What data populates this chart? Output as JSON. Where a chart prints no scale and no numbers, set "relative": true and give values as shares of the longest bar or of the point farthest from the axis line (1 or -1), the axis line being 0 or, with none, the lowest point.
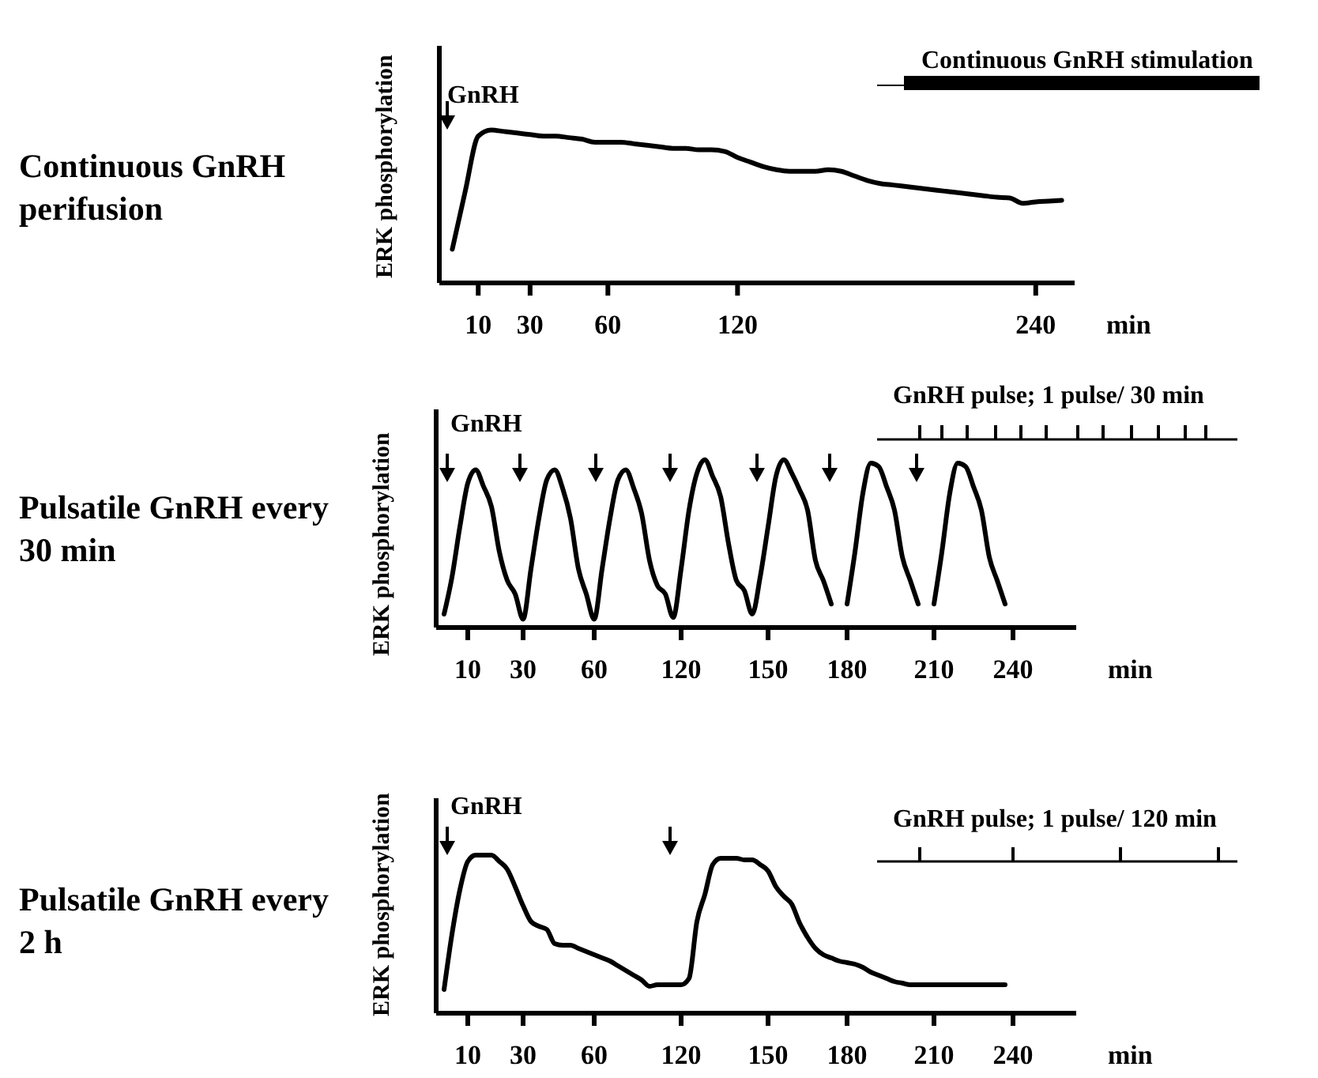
{
  "chart_data": [
    {
      "type": "line",
      "title": "Continuous GnRH perifusion",
      "xlabel": "min",
      "ylabel": "ERK phosphorylation",
      "relative": true,
      "color": "#000000",
      "categories": [
        null,
        null,
        null,
        "10",
        null,
        null,
        null,
        "30",
        null,
        null,
        null,
        null,
        null,
        "60",
        null,
        null,
        null,
        null,
        null,
        null,
        null,
        null,
        null,
        "120",
        null,
        null,
        null,
        null,
        null,
        null,
        null,
        null,
        null,
        null,
        null,
        null,
        null,
        null,
        null,
        null,
        null,
        null,
        null,
        null,
        null,
        null,
        "240",
        null,
        null,
        null
      ],
      "values": [
        null,
        0.22,
        0.6,
        0.96,
        1.0,
        0.99,
        0.98,
        0.97,
        0.96,
        0.96,
        0.95,
        0.94,
        0.92,
        0.92,
        0.92,
        0.91,
        0.9,
        0.89,
        0.88,
        0.88,
        0.87,
        0.87,
        0.86,
        0.82,
        0.79,
        0.76,
        0.74,
        0.73,
        0.73,
        0.73,
        0.74,
        0.73,
        0.7,
        0.67,
        0.65,
        0.64,
        0.63,
        0.62,
        0.61,
        0.6,
        0.59,
        0.58,
        0.57,
        0.56,
        0.555,
        0.52,
        0.53,
        0.535,
        0.54,
        null
      ],
      "annotations": [
        "GnRH",
        "Continuous GnRH stimulation"
      ]
    },
    {
      "type": "line",
      "title": "Pulsatile GnRH every 30 min",
      "xlabel": "min",
      "ylabel": "ERK phosphorylation",
      "relative": true,
      "color": "#000000",
      "categories": [
        null,
        null,
        null,
        null,
        "10",
        null,
        null,
        null,
        null,
        null,
        null,
        "30",
        null,
        null,
        null,
        null,
        null,
        null,
        null,
        null,
        "60",
        null,
        null,
        null,
        null,
        null,
        null,
        null,
        null,
        null,
        null,
        "120",
        null,
        null,
        null,
        null,
        null,
        null,
        null,
        null,
        null,
        null,
        "150",
        null,
        null,
        null,
        null,
        null,
        null,
        null,
        null,
        null,
        "180",
        null,
        null,
        null,
        null,
        null,
        null,
        null,
        null,
        null,
        null,
        "210",
        null,
        null,
        null,
        null,
        null,
        null,
        null,
        null,
        null,
        "240",
        null,
        null,
        null,
        null,
        null,
        null,
        null,
        null
      ],
      "values": [
        null,
        0.08,
        0.3,
        0.6,
        0.86,
        0.94,
        0.84,
        0.72,
        0.45,
        0.28,
        0.2,
        0.05,
        0.35,
        0.65,
        0.88,
        0.94,
        0.83,
        0.65,
        0.35,
        0.2,
        0.05,
        0.35,
        0.65,
        0.88,
        0.94,
        0.83,
        0.68,
        0.4,
        0.25,
        0.2,
        0.06,
        0.35,
        0.7,
        0.92,
        1.0,
        0.9,
        0.78,
        0.5,
        0.28,
        0.22,
        0.08,
        0.3,
        0.6,
        0.9,
        1.0,
        0.92,
        0.82,
        0.7,
        0.4,
        0.28,
        0.14,
        null,
        0.14,
        0.45,
        0.8,
        0.98,
        0.96,
        0.84,
        0.7,
        0.42,
        0.28,
        0.14,
        null,
        0.14,
        0.45,
        0.8,
        0.98,
        0.96,
        0.84,
        0.7,
        0.42,
        0.28,
        0.14,
        null,
        null,
        null,
        null,
        null,
        null,
        null,
        null,
        null
      ],
      "annotations": [
        "GnRH",
        "GnRH pulse; 1 pulse/ 30 min"
      ]
    },
    {
      "type": "line",
      "title": "Pulsatile GnRH every 2 h",
      "xlabel": "min",
      "ylabel": "ERK phosphorylation",
      "relative": true,
      "color": "#000000",
      "categories": [
        null,
        null,
        null,
        null,
        "10",
        null,
        null,
        null,
        null,
        null,
        null,
        "30",
        null,
        null,
        null,
        null,
        null,
        null,
        null,
        null,
        "60",
        null,
        null,
        null,
        null,
        null,
        null,
        null,
        null,
        null,
        null,
        "120",
        null,
        null,
        null,
        null,
        null,
        null,
        null,
        null,
        null,
        null,
        "150",
        null,
        null,
        null,
        null,
        null,
        null,
        null,
        null,
        null,
        "180",
        null,
        null,
        null,
        null,
        null,
        null,
        null,
        null,
        null,
        null,
        "210",
        null,
        null,
        null,
        null,
        null,
        null,
        null,
        null,
        null,
        "240",
        null,
        null,
        null,
        null,
        null,
        null,
        null,
        null
      ],
      "values": [
        null,
        0.15,
        0.5,
        0.78,
        0.96,
        1.0,
        1.0,
        1.0,
        0.96,
        0.91,
        0.8,
        0.68,
        0.58,
        0.55,
        0.53,
        0.44,
        0.43,
        0.43,
        0.41,
        0.39,
        0.37,
        0.35,
        0.33,
        0.3,
        0.27,
        0.24,
        0.21,
        0.17,
        0.18,
        0.18,
        0.18,
        0.18,
        0.22,
        0.58,
        0.75,
        0.94,
        0.98,
        0.98,
        0.98,
        0.97,
        0.97,
        0.94,
        0.9,
        0.8,
        0.74,
        0.69,
        0.57,
        0.48,
        0.41,
        0.37,
        0.35,
        0.33,
        0.32,
        0.31,
        0.29,
        0.26,
        0.24,
        0.22,
        0.2,
        0.19,
        0.18,
        0.18,
        0.18,
        0.18,
        0.18,
        0.18,
        0.18,
        0.18,
        0.18,
        0.18,
        0.18,
        0.18,
        0.18,
        null,
        null,
        null,
        null,
        null,
        null,
        null,
        null,
        null
      ],
      "annotations": [
        "GnRH",
        "GnRH pulse; 1 pulse/ 120 min"
      ]
    }
  ]
}
